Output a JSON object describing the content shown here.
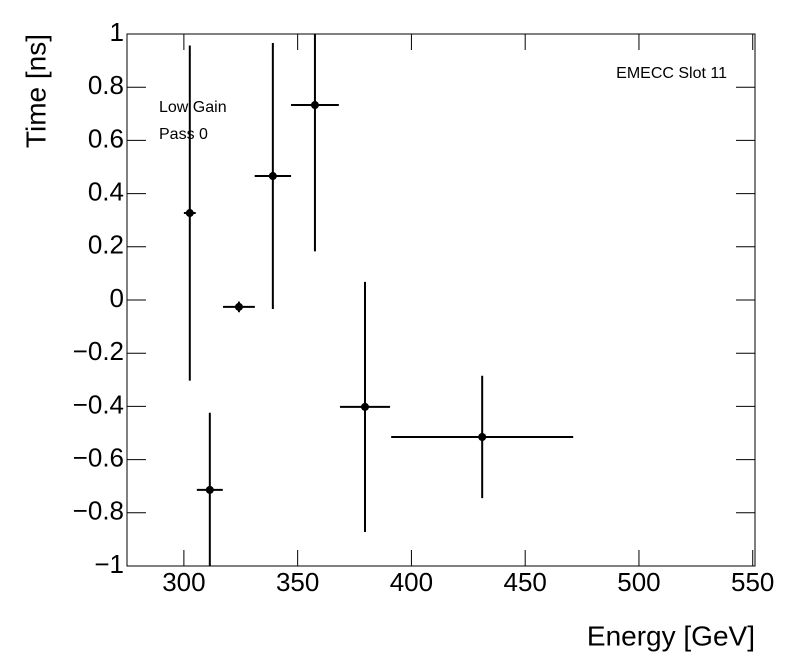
{
  "chart_data": {
    "type": "errorbar",
    "xlabel": "Energy [GeV]",
    "ylabel": "Time [ns]",
    "annotations": [
      "EMECC Slot 11",
      "Low Gain",
      "Pass 0"
    ],
    "series": [
      {
        "color": "#000000",
        "x": [
          302.6,
          311.4,
          324.2,
          339.1,
          357.6,
          379.6,
          431.1
        ],
        "xerr": [
          2.6,
          5.7,
          7,
          8,
          10.5,
          11,
          40
        ],
        "values": [
          0.327,
          -0.714,
          -0.026,
          0.466,
          0.733,
          -0.402,
          -0.515
        ],
        "yerr": [
          0.63,
          0.29,
          0.02,
          0.5,
          0.55,
          0.47,
          0.23
        ]
      }
    ],
    "xlim": [
      275,
      551
    ],
    "ylim": [
      -1,
      1
    ],
    "xticks": [
      300,
      350,
      400,
      450,
      500,
      550
    ],
    "yticks": [
      {
        "value": -1,
        "label": "−1"
      },
      {
        "value": -0.8,
        "label": "−0.8"
      },
      {
        "value": -0.6,
        "label": "−0.6"
      },
      {
        "value": -0.4,
        "label": "−0.4"
      },
      {
        "value": -0.2,
        "label": "−0.2"
      },
      0,
      0.2,
      0.4,
      0.6,
      0.8,
      1
    ]
  }
}
